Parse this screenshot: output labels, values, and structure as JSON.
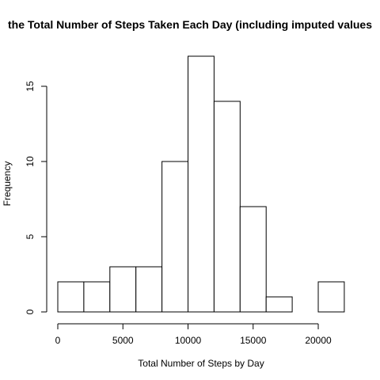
{
  "chart_data": {
    "type": "bar",
    "title": "the Total Number of Steps Taken Each Day (including imputed values",
    "xlabel": "Total Number of Steps by Day",
    "ylabel": "Frequency",
    "bins": [
      {
        "from": 0,
        "to": 2000,
        "count": 2
      },
      {
        "from": 2000,
        "to": 4000,
        "count": 2
      },
      {
        "from": 4000,
        "to": 6000,
        "count": 3
      },
      {
        "from": 6000,
        "to": 8000,
        "count": 3
      },
      {
        "from": 8000,
        "to": 10000,
        "count": 10
      },
      {
        "from": 10000,
        "to": 12000,
        "count": 17
      },
      {
        "from": 12000,
        "to": 14000,
        "count": 14
      },
      {
        "from": 14000,
        "to": 16000,
        "count": 7
      },
      {
        "from": 16000,
        "to": 18000,
        "count": 1
      },
      {
        "from": 18000,
        "to": 20000,
        "count": 0
      },
      {
        "from": 20000,
        "to": 22000,
        "count": 2
      }
    ],
    "xlim": [
      0,
      22000
    ],
    "ylim": [
      0,
      17
    ],
    "x_ticks": [
      0,
      5000,
      10000,
      15000,
      20000
    ],
    "y_ticks": [
      0,
      5,
      10,
      15
    ],
    "grid": false,
    "legend": "none"
  }
}
